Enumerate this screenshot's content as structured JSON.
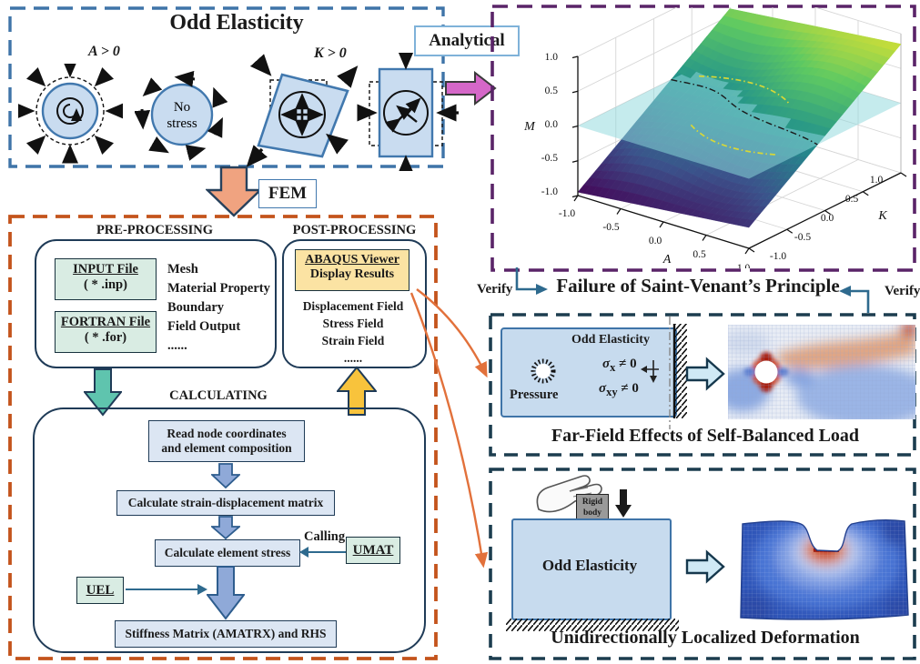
{
  "odd_panel": {
    "title": "Odd Elasticity",
    "label_a": "A > 0",
    "label_k": "K > 0",
    "no_stress_1": "No",
    "no_stress_2": "stress",
    "icons": [
      "rotating-compression-disk",
      "no-stress-circulation-disk",
      "sheared-parallelogram-dilation",
      "rectangle-shear-expansion"
    ]
  },
  "analytical_label": "Analytical",
  "fem_label": "FEM",
  "chart_data": {
    "type": "surface3d",
    "title": "",
    "xlabel": "A",
    "ylabel": "K",
    "zlabel": "M",
    "x_range": [
      -1,
      1
    ],
    "y_range": [
      -1,
      1
    ],
    "z_range": [
      -1,
      1
    ],
    "x_ticks": [
      "-1.0",
      "-0.5",
      "0.0",
      "0.5",
      "1.0"
    ],
    "y_ticks": [
      "-1.0",
      "-0.5",
      "0.0",
      "0.5",
      "1.0"
    ],
    "z_ticks": [
      "-1.0",
      "-0.5",
      "0.0",
      "0.5",
      "1.0"
    ],
    "zero_plane": true,
    "colormap": "viridis",
    "surface_corner_values": {
      "A-1_K-1": -0.95,
      "A1_K-1": -0.7,
      "A-1_K1": 0.6,
      "A1_K1": 0.85
    },
    "description": "Saddle-like surface M(A,K) intersecting the translucent M=0 plane; dash-dot curves mark the intersection"
  },
  "fem_box": {
    "pre": {
      "heading": "PRE-PROCESSING",
      "input_file_1": "INPUT File",
      "input_file_2": "( * .inp)",
      "fortran_file_1": "FORTRAN File",
      "fortran_file_2": "( * .for)",
      "items": [
        "Mesh",
        "Material Property",
        "Boundary",
        "Field Output",
        "......"
      ]
    },
    "post": {
      "heading": "POST-PROCESSING",
      "viewer_1": "ABAQUS Viewer",
      "viewer_2": "Display Results",
      "items": [
        "Displacement Field",
        "Stress Field",
        "Strain Field",
        "......"
      ]
    },
    "calc": {
      "heading": "CALCULATING",
      "step1_line1": "Read node coordinates",
      "step1_line2": "and element composition",
      "step2": "Calculate strain-displacement matrix",
      "step3": "Calculate element stress",
      "calling": "Calling",
      "umat": "UMAT",
      "uel": "UEL",
      "step4": "Stiffness Matrix (AMATRX) and RHS"
    }
  },
  "verify_left": "Verify",
  "verify_right": "Verify",
  "svp_title": "Failure of Saint-Venant’s Principle",
  "farfield": {
    "odd": "Odd Elasticity",
    "pressure": "Pressure",
    "sigma_x": {
      "base": "σ",
      "sub": "x",
      "tail": " ≠ 0"
    },
    "sigma_xy": {
      "base": "σ",
      "sub": "xy",
      "tail": " ≠ 0"
    },
    "caption": "Far-Field Effects of Self-Balanced Load"
  },
  "localized": {
    "rigid_1": "Rigid",
    "rigid_2": "body",
    "odd": "Odd Elasticity",
    "caption": "Unidirectionally Localized Deformation"
  }
}
